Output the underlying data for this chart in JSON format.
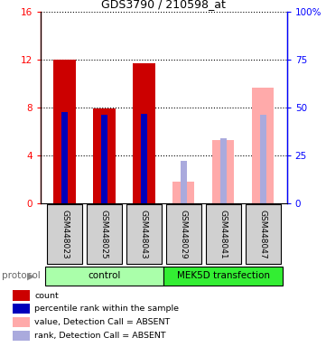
{
  "title": "GDS3790 / 210598_at",
  "samples": [
    "GSM448023",
    "GSM448025",
    "GSM448043",
    "GSM448029",
    "GSM448041",
    "GSM448047"
  ],
  "count_values": [
    12.0,
    7.9,
    11.7,
    null,
    null,
    null
  ],
  "rank_values_left": [
    7.6,
    7.4,
    7.5,
    null,
    null,
    null
  ],
  "absent_value_values": [
    null,
    null,
    null,
    1.8,
    5.3,
    9.7
  ],
  "absent_rank_values_left": [
    null,
    null,
    null,
    3.5,
    5.4,
    7.4
  ],
  "ylim_left": [
    0,
    16
  ],
  "ylim_right": [
    0,
    100
  ],
  "yticks_left": [
    0,
    4,
    8,
    12,
    16
  ],
  "yticks_right": [
    0,
    25,
    50,
    75,
    100
  ],
  "ytick_labels_right": [
    "0",
    "25",
    "50",
    "75",
    "100%"
  ],
  "bar_width": 0.55,
  "rank_bar_width": 0.15,
  "color_count": "#cc0000",
  "color_rank": "#0000bb",
  "color_absent_value": "#ffaaaa",
  "color_absent_rank": "#aaaadd",
  "color_control_bg": "#aaffaa",
  "color_mek5d_bg": "#33ee33",
  "color_sample_bg": "#d0d0d0",
  "legend_items": [
    {
      "label": "count",
      "color": "#cc0000"
    },
    {
      "label": "percentile rank within the sample",
      "color": "#0000bb"
    },
    {
      "label": "value, Detection Call = ABSENT",
      "color": "#ffaaaa"
    },
    {
      "label": "rank, Detection Call = ABSENT",
      "color": "#aaaadd"
    }
  ],
  "protocol_label": "protocol",
  "control_label": "control",
  "mek5d_label": "MEK5D transfection",
  "n_control": 3,
  "n_mek5d": 3
}
